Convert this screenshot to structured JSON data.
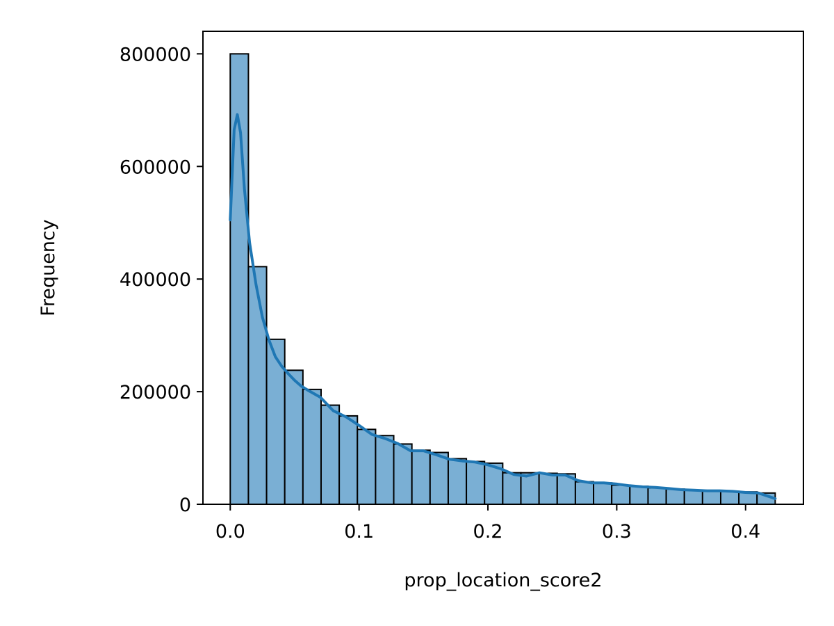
{
  "chart_data": {
    "type": "bar",
    "xlabel": "prop_location_score2",
    "ylabel": "Frequency",
    "xlim": [
      -0.0212,
      0.4449
    ],
    "ylim": [
      0,
      840000
    ],
    "x_ticks": [
      0.0,
      0.1,
      0.2,
      0.3,
      0.4
    ],
    "x_tick_labels": [
      "0.0",
      "0.1",
      "0.2",
      "0.3",
      "0.4"
    ],
    "y_ticks": [
      0,
      200000,
      400000,
      600000,
      800000
    ],
    "y_tick_labels": [
      "0",
      "200000",
      "400000",
      "600000",
      "800000"
    ],
    "grid": false,
    "bin_edges": [
      0,
      0.0141,
      0.0282,
      0.0423,
      0.0564,
      0.0705,
      0.0846,
      0.0987,
      0.1128,
      0.1269,
      0.141,
      0.1551,
      0.1692,
      0.1833,
      0.1974,
      0.2115,
      0.2256,
      0.2397,
      0.2538,
      0.2679,
      0.282,
      0.2961,
      0.3102,
      0.3243,
      0.3384,
      0.3525,
      0.3666,
      0.3807,
      0.3948,
      0.4089,
      0.423
    ],
    "values": [
      800000,
      422000,
      293000,
      238000,
      204000,
      176000,
      157000,
      133000,
      122000,
      107000,
      96000,
      92000,
      81000,
      76000,
      73000,
      56000,
      56000,
      55000,
      54000,
      40000,
      38000,
      34000,
      32000,
      29000,
      27000,
      25000,
      24000,
      23000,
      22000,
      20000
    ],
    "kde": {
      "x": [
        0.0,
        0.003,
        0.0055,
        0.008,
        0.011,
        0.015,
        0.02,
        0.025,
        0.03,
        0.035,
        0.04,
        0.045,
        0.05,
        0.055,
        0.06,
        0.07,
        0.08,
        0.09,
        0.1,
        0.11,
        0.12,
        0.13,
        0.14,
        0.15,
        0.16,
        0.17,
        0.18,
        0.19,
        0.2,
        0.21,
        0.22,
        0.23,
        0.24,
        0.25,
        0.26,
        0.27,
        0.28,
        0.29,
        0.3,
        0.31,
        0.32,
        0.33,
        0.34,
        0.35,
        0.36,
        0.37,
        0.38,
        0.39,
        0.4,
        0.41,
        0.423
      ],
      "y": [
        505000,
        665000,
        692000,
        660000,
        560000,
        465000,
        390000,
        332000,
        292000,
        262000,
        245000,
        232000,
        220000,
        210000,
        203000,
        190000,
        166000,
        155000,
        140000,
        124000,
        117000,
        108000,
        95000,
        95000,
        88000,
        80000,
        77000,
        75000,
        70000,
        63000,
        53000,
        50000,
        56000,
        52000,
        52000,
        42000,
        38000,
        38000,
        36000,
        33000,
        31000,
        30000,
        28000,
        26000,
        25000,
        24000,
        24000,
        23000,
        21000,
        20000,
        10000
      ]
    },
    "colors": {
      "bar_fill": "#7aafd4",
      "bar_edge": "#000000",
      "kde_line": "#1f77b4",
      "axes": "#000000"
    }
  }
}
